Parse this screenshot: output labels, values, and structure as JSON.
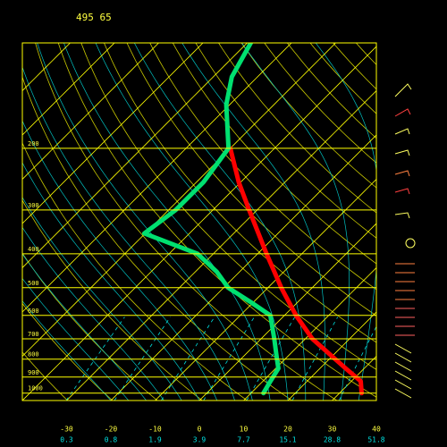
{
  "chart_data": {
    "type": "skewt",
    "title": "495  65",
    "ylim": [
      1050,
      100
    ],
    "yticks": [
      1000,
      900,
      800,
      700,
      600,
      500,
      400,
      300,
      200
    ],
    "xlim": [
      -40,
      40
    ],
    "xticks": [
      -30,
      -20,
      -10,
      0,
      10,
      20,
      30,
      40
    ],
    "mixing_ratios": [
      0.3,
      0.8,
      1.9,
      3.9,
      7.7,
      15.1,
      28.8,
      51.8
    ],
    "log_scale_y": true,
    "series": [
      {
        "color": "#ff0000",
        "pressure": [
          1000,
          925,
          850,
          700,
          600,
          500,
          400,
          300,
          250,
          200
        ],
        "values": [
          35,
          32.1,
          25.8,
          11.6,
          2.6,
          -7,
          -18,
          -31.8,
          -40.4,
          -50
        ]
      },
      {
        "color": "#00e070",
        "pressure": [
          1000,
          925,
          850,
          800,
          700,
          600,
          550,
          500,
          450,
          400,
          350,
          300,
          250,
          200,
          150,
          125,
          100
        ],
        "values": [
          12.8,
          11.7,
          10.6,
          8.2,
          3,
          -3.2,
          -10.6,
          -19,
          -25.2,
          -33.6,
          -50.2,
          -48.4,
          -48.4,
          -50.4,
          -60.8,
          -65.8,
          -69.2
        ]
      }
    ]
  }
}
